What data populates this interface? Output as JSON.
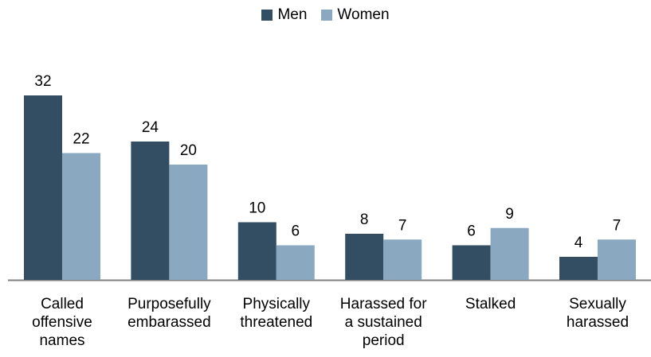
{
  "chart_data": {
    "type": "bar",
    "categories": [
      "Called offensive names",
      "Purposefully embarassed",
      "Physically threatened",
      "Harassed for a sustained period",
      "Stalked",
      "Sexually harassed"
    ],
    "category_lines": [
      [
        "Called",
        "offensive",
        "names"
      ],
      [
        "Purposefully",
        "embarassed"
      ],
      [
        "Physically",
        "threatened"
      ],
      [
        "Harassed for",
        "a sustained",
        "period"
      ],
      [
        "Stalked"
      ],
      [
        "Sexually",
        "harassed"
      ]
    ],
    "series": [
      {
        "name": "Men",
        "values": [
          32,
          24,
          10,
          8,
          6,
          4
        ],
        "color": "#334e63"
      },
      {
        "name": "Women",
        "values": [
          22,
          20,
          6,
          7,
          9,
          7
        ],
        "color": "#8aa9c0"
      }
    ],
    "ylim": [
      0,
      32
    ],
    "grid": false,
    "legend_position": "top-center",
    "axis_color": "#7f7f7f"
  }
}
